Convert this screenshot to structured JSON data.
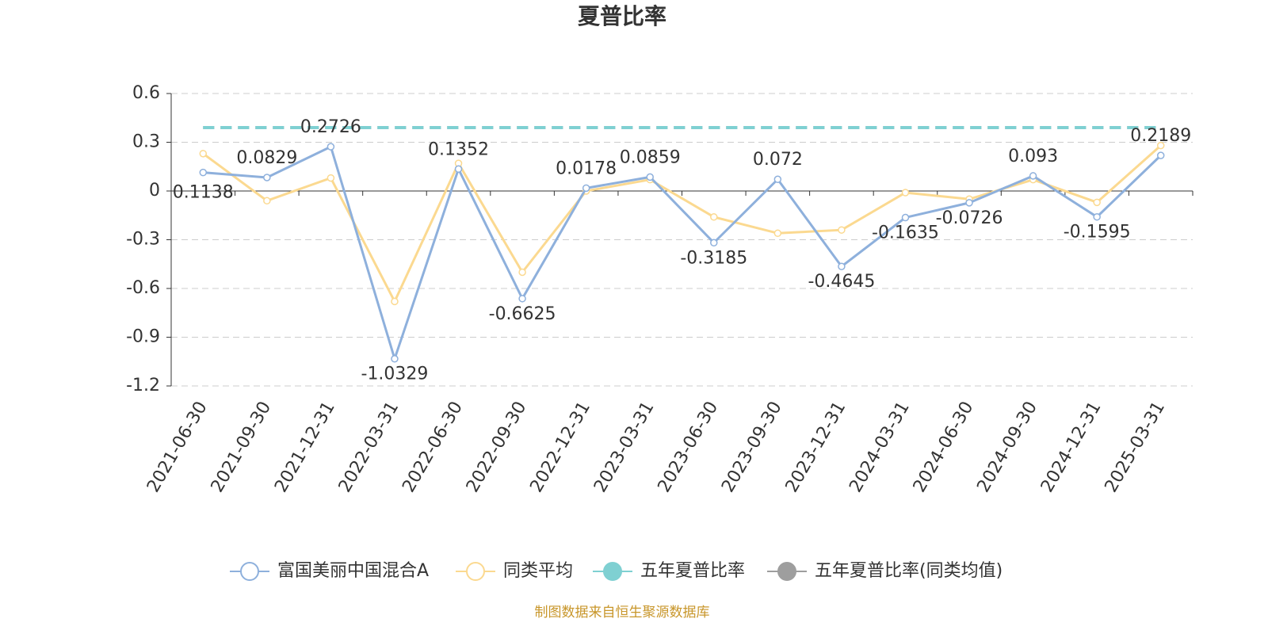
{
  "chart_data": {
    "type": "line",
    "title": "夏普比率",
    "categories": [
      "2021-06-30",
      "2021-09-30",
      "2021-12-31",
      "2022-03-31",
      "2022-06-30",
      "2022-09-30",
      "2022-12-31",
      "2023-03-31",
      "2023-06-30",
      "2023-09-30",
      "2023-12-31",
      "2024-03-31",
      "2024-06-30",
      "2024-09-30",
      "2024-12-31",
      "2025-03-31"
    ],
    "series": [
      {
        "name": "富国美丽中国混合A",
        "color": "#8eb0dc",
        "values": [
          0.1138,
          0.0829,
          0.2726,
          -1.0329,
          0.1352,
          -0.6625,
          0.0178,
          0.0859,
          -0.3185,
          0.072,
          -0.4645,
          -0.1635,
          -0.0726,
          0.093,
          -0.1595,
          0.2189
        ]
      },
      {
        "name": "同类平均",
        "color": "#fbd990",
        "values": [
          0.23,
          -0.06,
          0.08,
          -0.68,
          0.17,
          -0.5,
          0.0,
          0.07,
          -0.16,
          -0.26,
          -0.24,
          -0.01,
          -0.05,
          0.07,
          -0.07,
          0.28
        ]
      },
      {
        "name": "五年夏普比率",
        "color": "#7fd0d2",
        "values": [
          0.39,
          0.39,
          0.39,
          0.39,
          0.39,
          0.39,
          0.39,
          0.39,
          0.39,
          0.39,
          0.39,
          0.39,
          0.39,
          0.39,
          0.39,
          0.39
        ]
      },
      {
        "name": "五年夏普比率(同类均值)",
        "color": "#9e9e9e",
        "values": [
          0.39,
          0.39,
          0.39,
          0.39,
          0.39,
          0.39,
          0.39,
          0.39,
          0.39,
          0.39,
          0.39,
          0.39,
          0.39,
          0.39,
          0.39,
          0.39
        ]
      }
    ],
    "ylim": [
      -1.2,
      0.6
    ],
    "yticks": [
      -1.2,
      -0.9,
      -0.6,
      -0.3,
      0,
      0.3,
      0.6
    ],
    "grid": true,
    "source": "制图数据来自恒生聚源数据库"
  }
}
